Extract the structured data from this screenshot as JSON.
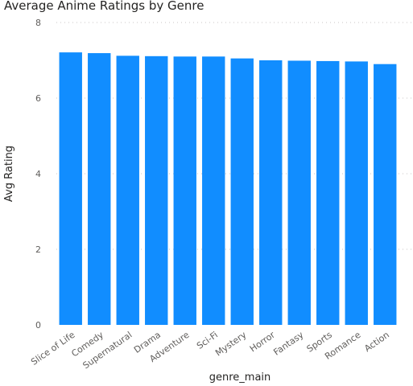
{
  "chart_data": {
    "type": "bar",
    "title": "Average Anime Ratings by Genre",
    "xlabel": "genre_main",
    "ylabel": "Avg Rating",
    "categories": [
      "Slice of Life",
      "Comedy",
      "Supernatural",
      "Drama",
      "Adventure",
      "Sci-Fi",
      "Mystery",
      "Horror",
      "Fantasy",
      "Sports",
      "Romance",
      "Action"
    ],
    "values": [
      7.21,
      7.19,
      7.12,
      7.11,
      7.1,
      7.1,
      7.05,
      7.0,
      6.99,
      6.98,
      6.97,
      6.9
    ],
    "ylim": [
      0,
      8
    ],
    "yticks": [
      "0",
      "2",
      "4",
      "6",
      "8"
    ],
    "grid": true,
    "bar_color": "#118DFF"
  }
}
